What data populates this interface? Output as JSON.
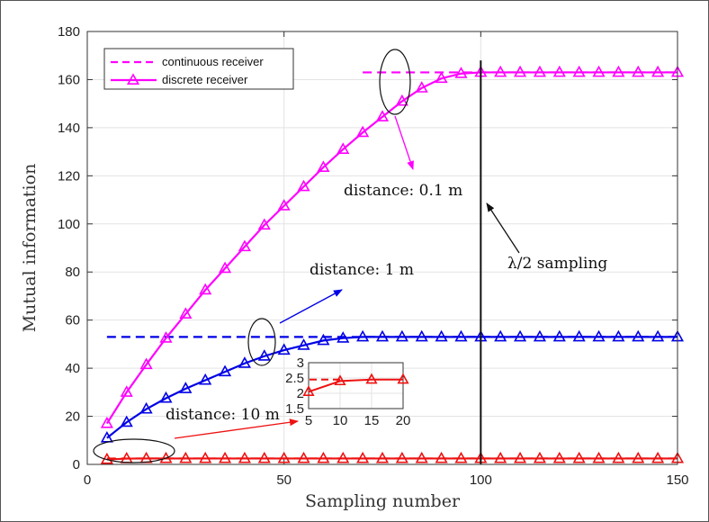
{
  "chart_data": {
    "type": "line",
    "xlabel": "Sampling number",
    "ylabel": "Mutual information",
    "xlim": [
      0,
      150
    ],
    "ylim": [
      0,
      180
    ],
    "xticks": [
      0,
      50,
      100,
      150
    ],
    "yticks": [
      0,
      20,
      40,
      60,
      80,
      100,
      120,
      140,
      160,
      180
    ],
    "grid": true,
    "legend_position": "top-left",
    "legend": [
      {
        "label": "continuous receiver",
        "style": "dashed"
      },
      {
        "label": "discrete receiver",
        "style": "solid-triangle"
      }
    ],
    "x": [
      5,
      10,
      15,
      20,
      25,
      30,
      35,
      40,
      45,
      50,
      55,
      60,
      65,
      70,
      75,
      80,
      85,
      90,
      95,
      100,
      105,
      110,
      115,
      120,
      125,
      130,
      135,
      140,
      145,
      150
    ],
    "series": [
      {
        "color": "#ff00ff",
        "continuous": 163,
        "values": [
          17,
          30,
          41.5,
          52.5,
          62.5,
          72.5,
          81.5,
          90.5,
          99.5,
          107.5,
          115.5,
          123.5,
          131,
          138,
          144.5,
          151,
          156.5,
          160.5,
          162.5,
          163,
          163,
          163,
          163,
          163,
          163,
          163,
          163,
          163,
          163,
          163
        ]
      },
      {
        "color": "#0000e6",
        "continuous": 53,
        "values": [
          11,
          17.5,
          23,
          27.5,
          31.5,
          35,
          38.5,
          42,
          45,
          47.5,
          49.5,
          51.5,
          52.5,
          53,
          53,
          53,
          53,
          53,
          53,
          53,
          53,
          53,
          53,
          53,
          53,
          53,
          53,
          53,
          53,
          53
        ]
      },
      {
        "color": "#ee1111",
        "continuous": 2.45,
        "values": [
          2.05,
          2.4,
          2.45,
          2.45,
          2.45,
          2.45,
          2.45,
          2.45,
          2.45,
          2.45,
          2.45,
          2.45,
          2.45,
          2.45,
          2.45,
          2.45,
          2.45,
          2.45,
          2.45,
          2.45,
          2.45,
          2.45,
          2.45,
          2.45,
          2.45,
          2.45,
          2.45,
          2.45,
          2.45,
          2.45
        ]
      }
    ],
    "vertical_line": {
      "x": 100
    },
    "annotations": [
      {
        "text": "distance: 0.1 m"
      },
      {
        "text": "distance: 1 m"
      },
      {
        "text": "distance: 10 m"
      },
      {
        "text": "λ/2 sampling"
      }
    ],
    "inset": {
      "xlim": [
        5,
        20
      ],
      "ylim": [
        1.5,
        3
      ],
      "xticks": [
        5,
        10,
        15,
        20
      ],
      "yticks": [
        1.5,
        2,
        2.5,
        3
      ],
      "ytick_labels": [
        "1.5",
        "2",
        "2.5",
        "3"
      ],
      "x": [
        5,
        10,
        15,
        20
      ],
      "values": [
        2.05,
        2.4,
        2.45,
        2.45
      ],
      "continuous": 2.45
    }
  }
}
